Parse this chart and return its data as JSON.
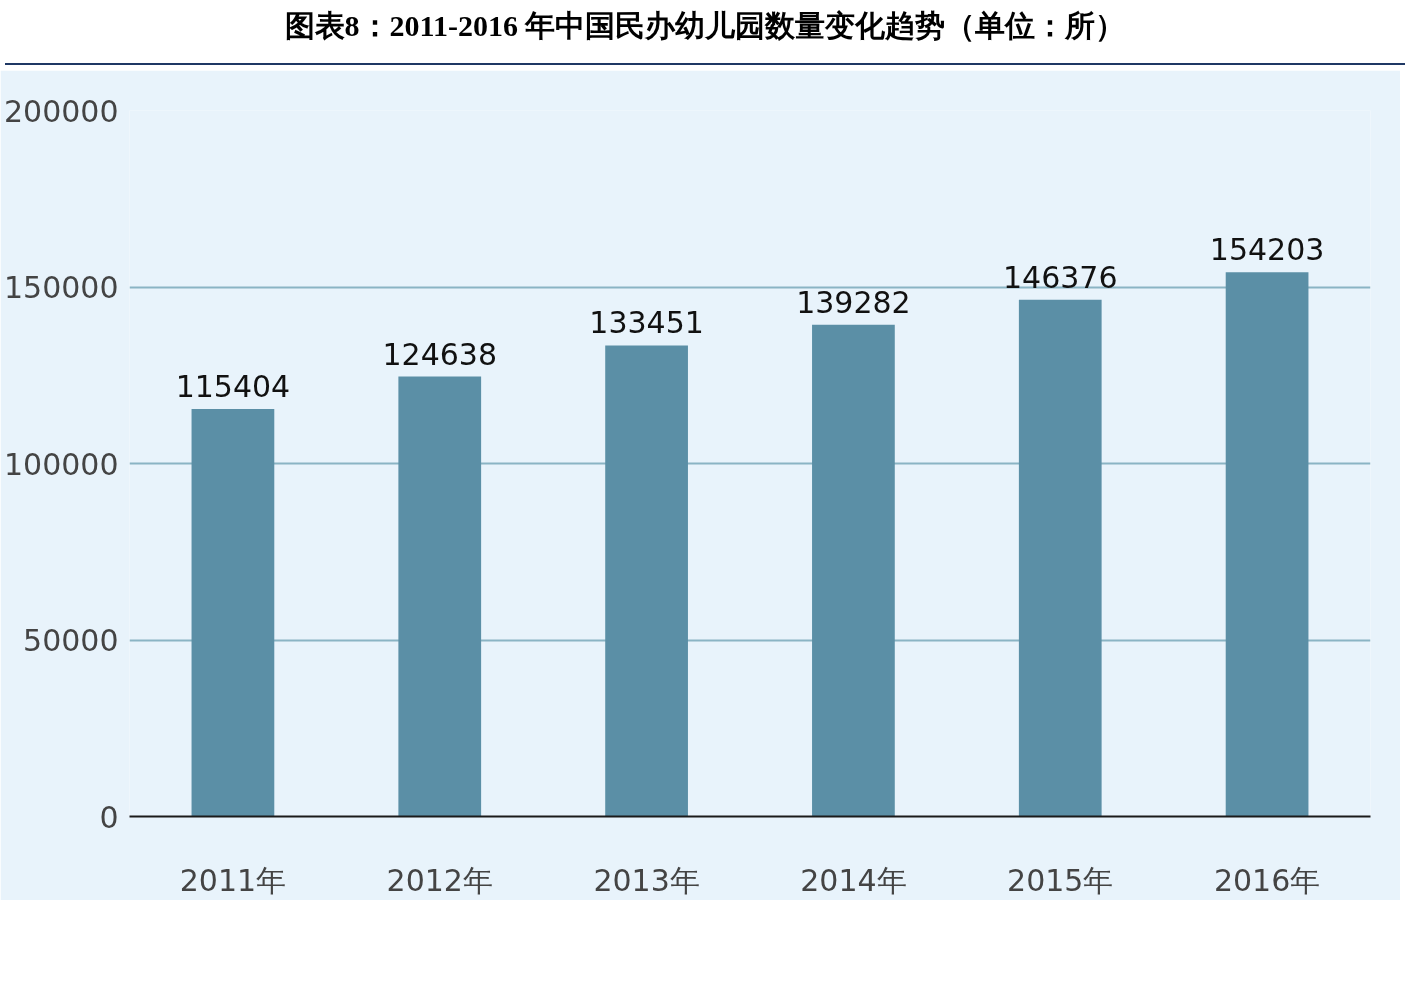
{
  "chart_data": {
    "type": "bar",
    "title": "图表8：2011-2016 年中国民办幼儿园数量变化趋势（单位：所）",
    "categories": [
      "2011年",
      "2012年",
      "2013年",
      "2014年",
      "2015年",
      "2016年"
    ],
    "values": [
      115404,
      124638,
      133451,
      139282,
      146376,
      154203
    ],
    "color": "#5b8fa6",
    "ylim": [
      0,
      200000
    ],
    "yticks": [
      0,
      50000,
      100000,
      150000,
      200000
    ],
    "grid": "y",
    "data_labels": true
  }
}
